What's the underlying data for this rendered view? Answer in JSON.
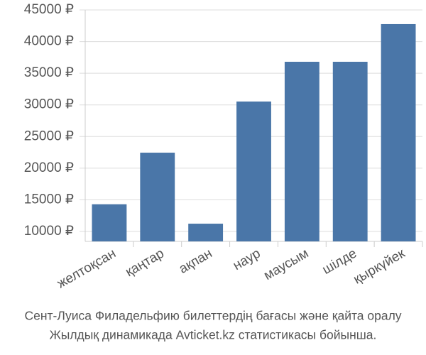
{
  "chart_data": {
    "type": "bar",
    "title": "Сент-Луиса Филадельфию билеттердің бағасы және қайта оралу",
    "subtitle": "Жылдық динамикада Avticket.kz статистикасы бойынша.",
    "categories": [
      "желтоқсан",
      "қаңтар",
      "ақпан",
      "наур",
      "маусым",
      "шілде",
      "қыркүйек"
    ],
    "values": [
      14300,
      22450,
      11230,
      30530,
      36810,
      36810,
      42760
    ],
    "color": "#4a76a8",
    "ylim": [
      8430,
      45000
    ],
    "yticks": [
      {
        "value": 10000,
        "label": "10000 ₽"
      },
      {
        "value": 15000,
        "label": "15000 ₽"
      },
      {
        "value": 20000,
        "label": "20000 ₽"
      },
      {
        "value": 25000,
        "label": "25000 ₽"
      },
      {
        "value": 30000,
        "label": "30000 ₽"
      },
      {
        "value": 35000,
        "label": "35000 ₽"
      },
      {
        "value": 40000,
        "label": "40000 ₽"
      },
      {
        "value": 45000,
        "label": "45000 ₽"
      }
    ],
    "grid": true
  }
}
